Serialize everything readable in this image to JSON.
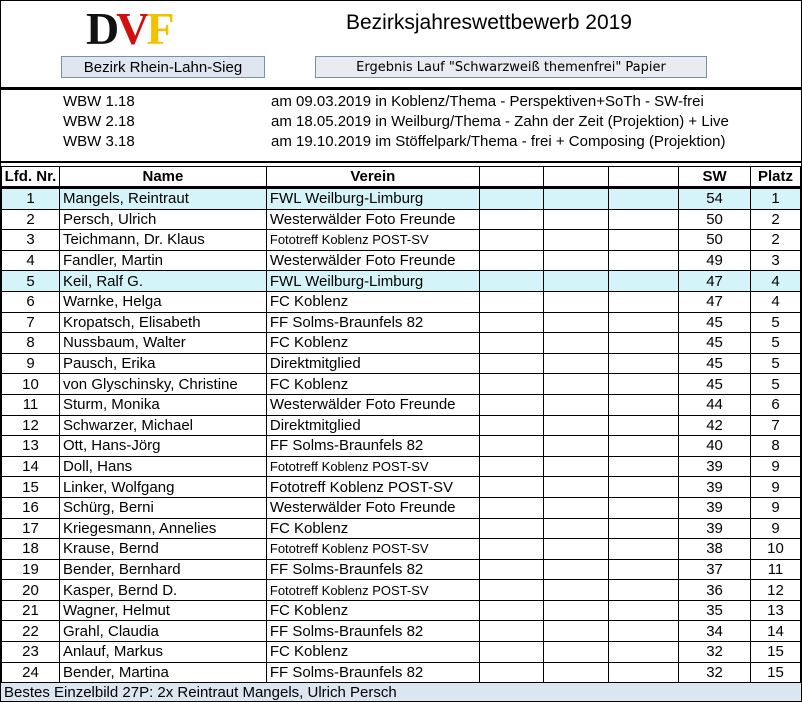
{
  "header": {
    "logo_text": "DVF",
    "title": "Bezirksjahreswettbewerb 2019",
    "district_button": "Bezirk Rhein-Lahn-Sieg",
    "result_button": "Ergebnis Lauf \"Schwarzweiß themenfrei\" Papier"
  },
  "competitions": [
    {
      "code": "WBW 1.18",
      "desc": "am 09.03.2019 in Koblenz/Thema - Perspektiven+SoTh - SW-frei"
    },
    {
      "code": "WBW 2.18",
      "desc": "am 18.05.2019 in Weilburg/Thema - Zahn der Zeit (Projektion) + Live"
    },
    {
      "code": "WBW 3.18",
      "desc": "am 19.10.2019 im Stöffelpark/Thema - frei + Composing (Projektion)"
    }
  ],
  "table": {
    "columns": [
      "Lfd. Nr.",
      "Name",
      "Verein",
      "",
      "",
      "",
      "SW",
      "Platz"
    ],
    "rows": [
      {
        "nr": "1",
        "name": "Mangels, Reintraut",
        "verein": "FWL Weilburg-Limburg",
        "sw": "54",
        "platz": "1",
        "highlight": true
      },
      {
        "nr": "2",
        "name": "Persch, Ulrich",
        "verein": "Westerwälder Foto Freunde",
        "sw": "50",
        "platz": "2"
      },
      {
        "nr": "3",
        "name": "Teichmann, Dr. Klaus",
        "verein": "Fototreff Koblenz POST-SV",
        "sw": "50",
        "platz": "2",
        "small": true
      },
      {
        "nr": "4",
        "name": "Fandler, Martin",
        "verein": "Westerwälder Foto Freunde",
        "sw": "49",
        "platz": "3"
      },
      {
        "nr": "5",
        "name": "Keil, Ralf G.",
        "verein": "FWL Weilburg-Limburg",
        "sw": "47",
        "platz": "4",
        "highlight": true
      },
      {
        "nr": "6",
        "name": "Warnke, Helga",
        "verein": "FC Koblenz",
        "sw": "47",
        "platz": "4"
      },
      {
        "nr": "7",
        "name": "Kropatsch, Elisabeth",
        "verein": "FF Solms-Braunfels 82",
        "sw": "45",
        "platz": "5"
      },
      {
        "nr": "8",
        "name": "Nussbaum, Walter",
        "verein": "FC Koblenz",
        "sw": "45",
        "platz": "5"
      },
      {
        "nr": "9",
        "name": "Pausch, Erika",
        "verein": "Direktmitglied",
        "sw": "45",
        "platz": "5"
      },
      {
        "nr": "10",
        "name": "von Glyschinsky, Christine",
        "verein": "FC Koblenz",
        "sw": "45",
        "platz": "5"
      },
      {
        "nr": "11",
        "name": "Sturm, Monika",
        "verein": "Westerwälder Foto Freunde",
        "sw": "44",
        "platz": "6"
      },
      {
        "nr": "12",
        "name": "Schwarzer, Michael",
        "verein": "Direktmitglied",
        "sw": "42",
        "platz": "7"
      },
      {
        "nr": "13",
        "name": "Ott, Hans-Jörg",
        "verein": "FF Solms-Braunfels 82",
        "sw": "40",
        "platz": "8"
      },
      {
        "nr": "14",
        "name": "Doll, Hans",
        "verein": "Fototreff Koblenz POST-SV",
        "sw": "39",
        "platz": "9",
        "small": true
      },
      {
        "nr": "15",
        "name": "Linker, Wolfgang",
        "verein": "Fototreff Koblenz POST-SV",
        "sw": "39",
        "platz": "9"
      },
      {
        "nr": "16",
        "name": "Schürg, Berni",
        "verein": "Westerwälder Foto Freunde",
        "sw": "39",
        "platz": "9"
      },
      {
        "nr": "17",
        "name": "Kriegesmann, Annelies",
        "verein": "FC Koblenz",
        "sw": "39",
        "platz": "9"
      },
      {
        "nr": "18",
        "name": "Krause, Bernd",
        "verein": "Fototreff Koblenz POST-SV",
        "sw": "38",
        "platz": "10",
        "small": true
      },
      {
        "nr": "19",
        "name": "Bender, Bernhard",
        "verein": "FF Solms-Braunfels 82",
        "sw": "37",
        "platz": "11"
      },
      {
        "nr": "20",
        "name": "Kasper, Bernd D.",
        "verein": "Fototreff Koblenz POST-SV",
        "sw": "36",
        "platz": "12",
        "small": true
      },
      {
        "nr": "21",
        "name": "Wagner, Helmut",
        "verein": "FC Koblenz",
        "sw": "35",
        "platz": "13"
      },
      {
        "nr": "22",
        "name": "Grahl, Claudia",
        "verein": "FF Solms-Braunfels 82",
        "sw": "34",
        "platz": "14"
      },
      {
        "nr": "23",
        "name": "Anlauf, Markus",
        "verein": "FC Koblenz",
        "sw": "32",
        "platz": "15"
      },
      {
        "nr": "24",
        "name": "Bender, Martina",
        "verein": "FF Solms-Braunfels 82",
        "sw": "32",
        "platz": "15"
      }
    ]
  },
  "footer": "Bestes Einzelbild 27P: 2x Reintraut Mangels, Ulrich Persch",
  "colors": {
    "highlight": "#d4f4fa",
    "footer": "#dce6f0",
    "logo_red": "#d01010",
    "logo_gold": "#f2c200"
  }
}
